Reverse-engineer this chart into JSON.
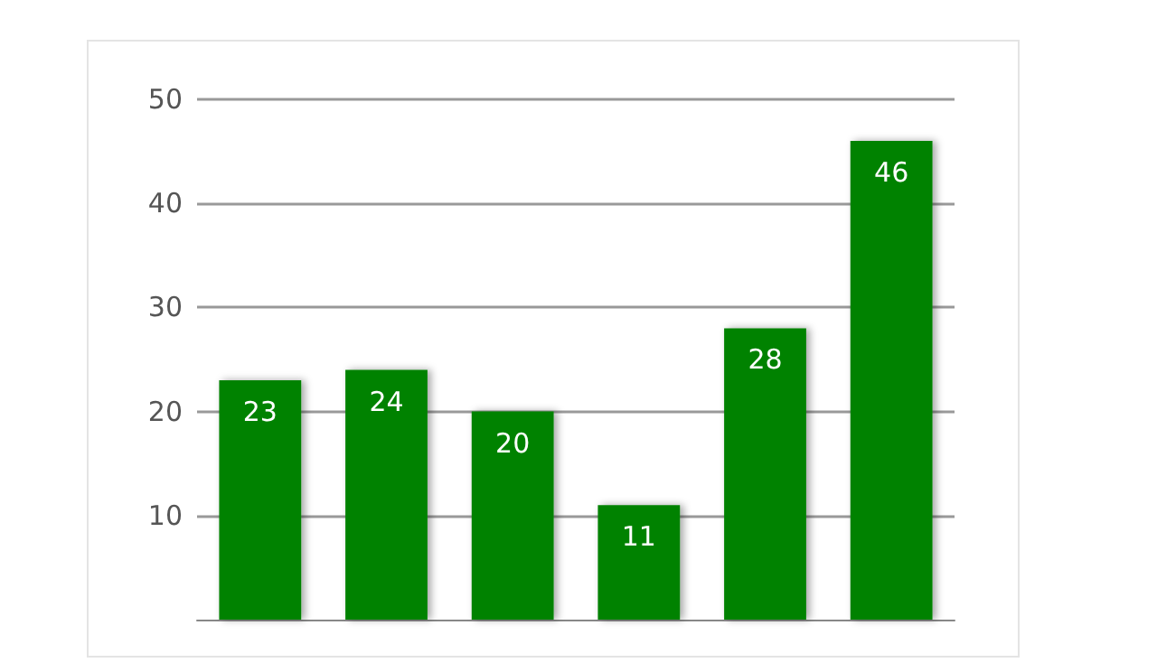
{
  "chart_data": {
    "type": "bar",
    "categories": [
      null,
      null,
      null,
      null,
      null,
      null
    ],
    "values": [
      23,
      24,
      20,
      11,
      28,
      46
    ],
    "color": "#058205",
    "ylim": [
      0,
      50
    ],
    "yticks": [
      10,
      20,
      30,
      40,
      50
    ],
    "grid": true,
    "data_labels": true
  }
}
